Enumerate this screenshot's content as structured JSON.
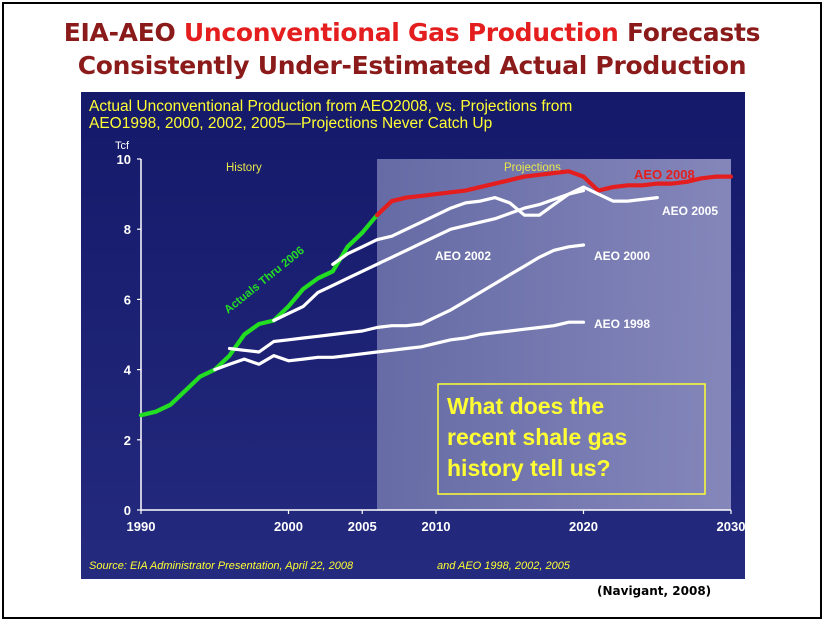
{
  "slide": {
    "title_line1_a": "EIA-AEO ",
    "title_line1_b": "Unconventional Gas Production",
    "title_line1_c": " Forecasts",
    "title_line2": "Consistently Under-Estimated Actual Production",
    "credit": "(Navigant, 2008)"
  },
  "colors": {
    "title_dark_red": "#8B1A1A",
    "title_red": "#E41E1E",
    "panel_bg": "#1A1F6E",
    "projection_bg": "#6A6FA8",
    "subtitle_yellow": "#FFFF33",
    "actual_green": "#22DD22",
    "aeo2008_red": "#E41E1E",
    "projection_white": "#FFFFFF"
  },
  "chart_data": {
    "type": "line",
    "title_line1": "Actual Unconventional Production from AEO2008, vs. Projections from",
    "title_line2": "AEO1998, 2000, 2002, 2005—Projections Never Catch Up",
    "ylabel": "Tcf",
    "xlim": [
      1990,
      2030
    ],
    "ylim": [
      0,
      10
    ],
    "x_ticks": [
      1990,
      2000,
      2005,
      2010,
      2020,
      2030
    ],
    "y_ticks": [
      0,
      2,
      4,
      6,
      8,
      10
    ],
    "grid": false,
    "region_labels": {
      "history": "History",
      "projections": "Projections"
    },
    "projection_start": 2006,
    "series": [
      {
        "name": "Actuals Thru 2006",
        "role": "actual",
        "x": [
          1990,
          1991,
          1992,
          1993,
          1994,
          1995,
          1996,
          1997,
          1998,
          1999,
          2000,
          2001,
          2002,
          2003,
          2004,
          2005,
          2006
        ],
        "y": [
          2.7,
          2.8,
          3.0,
          3.4,
          3.8,
          4.0,
          4.4,
          5.0,
          5.3,
          5.4,
          5.8,
          6.3,
          6.6,
          6.8,
          7.5,
          7.9,
          8.4
        ]
      },
      {
        "name": "AEO 2008",
        "role": "aeo2008",
        "x": [
          2006,
          2007,
          2008,
          2009,
          2010,
          2011,
          2012,
          2013,
          2014,
          2015,
          2016,
          2017,
          2018,
          2019,
          2020,
          2021,
          2022,
          2023,
          2024,
          2025,
          2026,
          2027,
          2028,
          2029,
          2030
        ],
        "y": [
          8.4,
          8.8,
          8.9,
          8.95,
          9.0,
          9.05,
          9.1,
          9.2,
          9.3,
          9.4,
          9.5,
          9.55,
          9.6,
          9.65,
          9.5,
          9.1,
          9.2,
          9.25,
          9.25,
          9.3,
          9.3,
          9.35,
          9.45,
          9.5,
          9.5
        ]
      },
      {
        "name": "AEO 2005",
        "role": "projection",
        "x": [
          2003,
          2004,
          2005,
          2006,
          2007,
          2008,
          2009,
          2010,
          2011,
          2012,
          2013,
          2014,
          2015,
          2016,
          2017,
          2018,
          2019,
          2020,
          2021,
          2022,
          2023,
          2024,
          2025
        ],
        "y": [
          7.0,
          7.3,
          7.5,
          7.7,
          7.8,
          8.0,
          8.2,
          8.4,
          8.6,
          8.75,
          8.8,
          8.9,
          8.75,
          8.4,
          8.4,
          8.7,
          9.0,
          9.2,
          9.0,
          8.8,
          8.8,
          8.85,
          8.9
        ]
      },
      {
        "name": "AEO 2002",
        "role": "projection",
        "x": [
          1999,
          2000,
          2001,
          2002,
          2003,
          2004,
          2005,
          2006,
          2007,
          2008,
          2009,
          2010,
          2011,
          2012,
          2013,
          2014,
          2015,
          2016,
          2017,
          2018,
          2019,
          2020
        ],
        "y": [
          5.4,
          5.6,
          5.8,
          6.2,
          6.4,
          6.6,
          6.8,
          7.0,
          7.2,
          7.4,
          7.6,
          7.8,
          8.0,
          8.1,
          8.2,
          8.3,
          8.45,
          8.6,
          8.7,
          8.85,
          9.0,
          9.1
        ]
      },
      {
        "name": "AEO 2000",
        "role": "projection",
        "x": [
          1996,
          1997,
          1998,
          1999,
          2000,
          2001,
          2002,
          2003,
          2004,
          2005,
          2006,
          2007,
          2008,
          2009,
          2010,
          2011,
          2012,
          2013,
          2014,
          2015,
          2016,
          2017,
          2018,
          2019,
          2020
        ],
        "y": [
          4.6,
          4.55,
          4.5,
          4.8,
          4.85,
          4.9,
          4.95,
          5.0,
          5.05,
          5.1,
          5.2,
          5.25,
          5.25,
          5.3,
          5.5,
          5.7,
          5.95,
          6.2,
          6.45,
          6.7,
          6.95,
          7.2,
          7.4,
          7.5,
          7.55
        ]
      },
      {
        "name": "AEO 1998",
        "role": "projection",
        "x": [
          1995,
          1996,
          1997,
          1998,
          1999,
          2000,
          2001,
          2002,
          2003,
          2004,
          2005,
          2006,
          2007,
          2008,
          2009,
          2010,
          2011,
          2012,
          2013,
          2014,
          2015,
          2016,
          2017,
          2018,
          2019,
          2020
        ],
        "y": [
          4.0,
          4.15,
          4.3,
          4.15,
          4.4,
          4.25,
          4.3,
          4.35,
          4.35,
          4.4,
          4.45,
          4.5,
          4.55,
          4.6,
          4.65,
          4.75,
          4.85,
          4.9,
          5.0,
          5.05,
          5.1,
          5.15,
          5.2,
          5.25,
          5.35,
          5.35
        ]
      }
    ],
    "callout": "What does the recent shale gas history tell us?",
    "source_a": "Source:  EIA Administrator Presentation, April 22, 2008",
    "source_b": "and AEO 1998, 2002, 2005"
  }
}
